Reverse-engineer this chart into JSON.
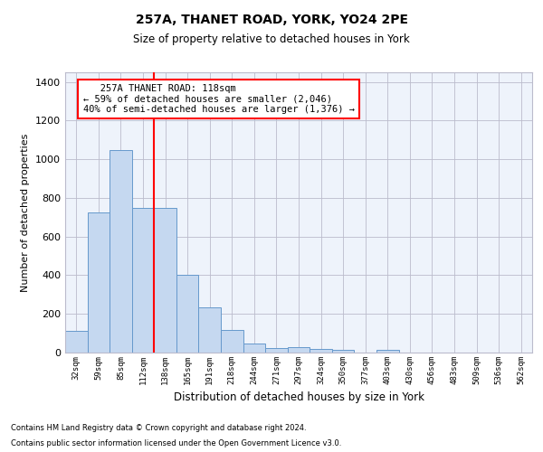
{
  "title": "257A, THANET ROAD, YORK, YO24 2PE",
  "subtitle": "Size of property relative to detached houses in York",
  "xlabel": "Distribution of detached houses by size in York",
  "ylabel": "Number of detached properties",
  "footnote1": "Contains HM Land Registry data © Crown copyright and database right 2024.",
  "footnote2": "Contains public sector information licensed under the Open Government Licence v3.0.",
  "annotation_line1": "   257A THANET ROAD: 118sqm",
  "annotation_line2": "← 59% of detached houses are smaller (2,046)",
  "annotation_line3": "40% of semi-detached houses are larger (1,376) →",
  "bar_labels": [
    "32sqm",
    "59sqm",
    "85sqm",
    "112sqm",
    "138sqm",
    "165sqm",
    "191sqm",
    "218sqm",
    "244sqm",
    "271sqm",
    "297sqm",
    "324sqm",
    "350sqm",
    "377sqm",
    "403sqm",
    "430sqm",
    "456sqm",
    "483sqm",
    "509sqm",
    "536sqm",
    "562sqm"
  ],
  "bar_values": [
    110,
    725,
    1050,
    750,
    750,
    400,
    235,
    115,
    45,
    25,
    30,
    20,
    15,
    0,
    15,
    0,
    0,
    0,
    0,
    0,
    0
  ],
  "bar_color": "#c5d8f0",
  "bar_edge_color": "#6699cc",
  "grid_color": "#bbbbcc",
  "bg_color": "#eef3fb",
  "vline_color": "red",
  "ylim": [
    0,
    1450
  ],
  "yticks": [
    0,
    200,
    400,
    600,
    800,
    1000,
    1200,
    1400
  ]
}
